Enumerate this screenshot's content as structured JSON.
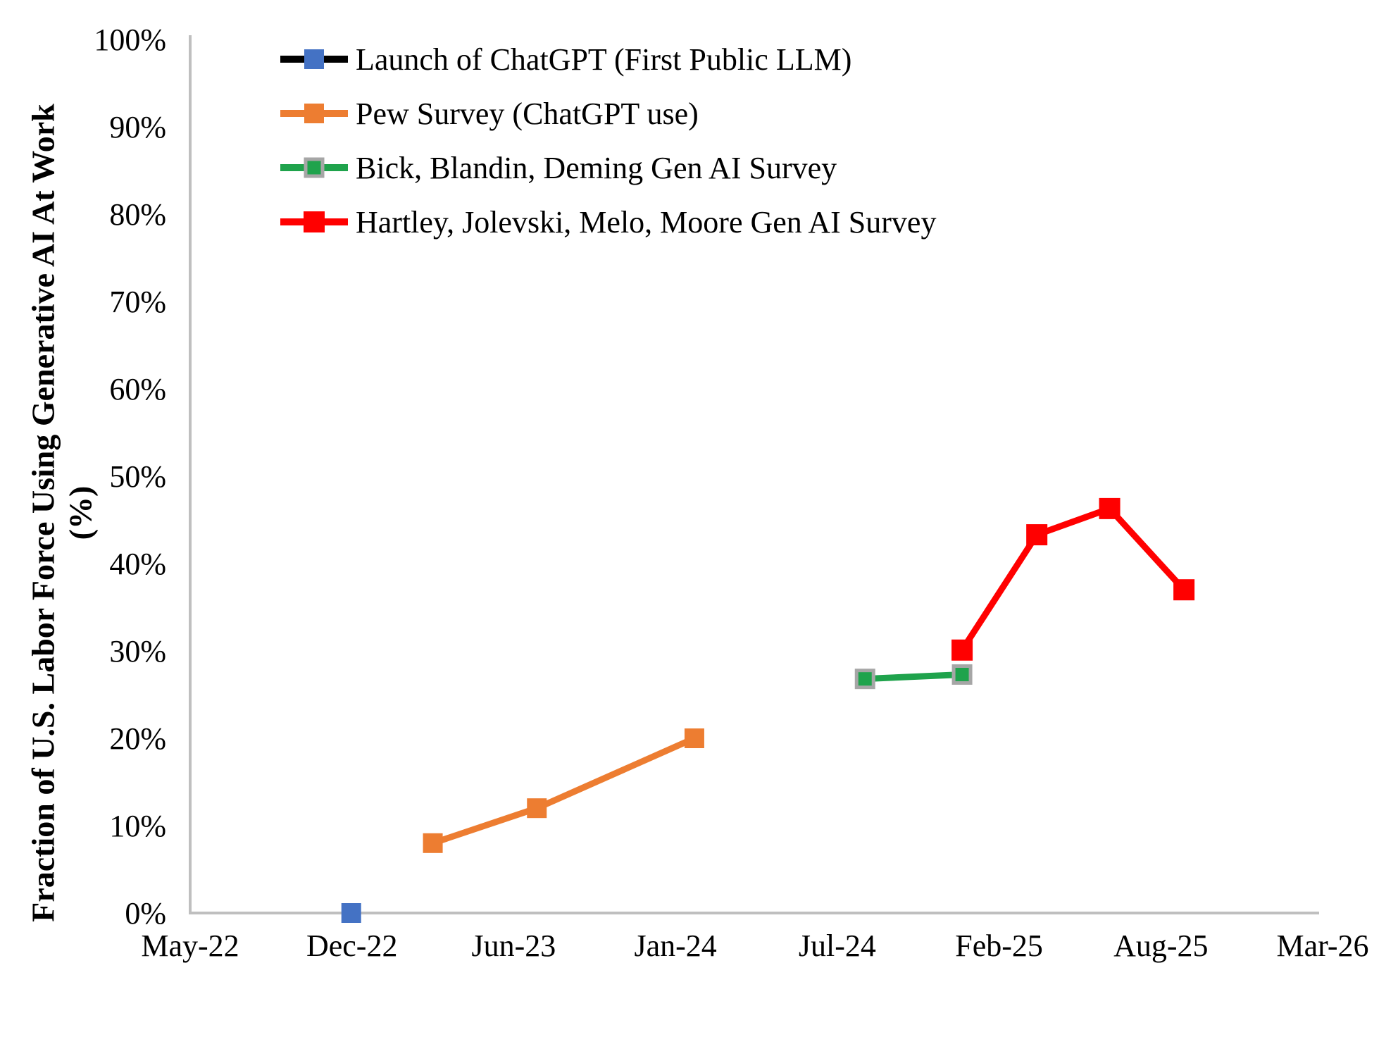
{
  "chart_data": {
    "type": "line",
    "title": "",
    "ylabel_line1": "Fraction of U.S. Labor Force Using Generative AI At Work",
    "ylabel_line2": "(%)",
    "background_color": "#FFFFFF",
    "axis_color": "#BFBFBF",
    "text_color": "#000000",
    "grid": "off",
    "legend_position": "top-left-inside",
    "y_axis": {
      "min": 0,
      "max": 100,
      "step": 10,
      "tick_labels": [
        "0%",
        "10%",
        "20%",
        "30%",
        "40%",
        "50%",
        "60%",
        "70%",
        "80%",
        "90%",
        "100%"
      ]
    },
    "x_axis": {
      "tick_labels": [
        "May-22",
        "Dec-22",
        "Jun-23",
        "Jan-24",
        "Jul-24",
        "Feb-25",
        "Aug-25",
        "Mar-26"
      ],
      "tick_months_since_may22": [
        0,
        7,
        13,
        20,
        26,
        33,
        39,
        46
      ]
    },
    "series": [
      {
        "name": "Launch of ChatGPT (First Public LLM)",
        "line_color": "#000000",
        "marker_color": "#4472C4",
        "points": [
          {
            "date": "Dec-22",
            "month": 6.97,
            "value_pct": 0
          }
        ]
      },
      {
        "name": "Pew Survey (ChatGPT use)",
        "line_color": "#ED7D31",
        "marker_color": "#ED7D31",
        "points": [
          {
            "date": "Mar-23",
            "month": 10.0,
            "value_pct": 8
          },
          {
            "date": "Jul-23",
            "month": 14.0,
            "value_pct": 12
          },
          {
            "date": "Feb-24",
            "month": 20.7,
            "value_pct": 20
          }
        ]
      },
      {
        "name": "Bick, Blandin, Deming Gen AI Survey",
        "line_color": "#1FA34C",
        "marker_color": "#1FA34C",
        "marker_border_color": "#A6A6A6",
        "points": [
          {
            "date": "Aug-24",
            "month": 27.2,
            "value_pct": 26.8
          },
          {
            "date": "Dec-24",
            "month": 31.4,
            "value_pct": 27.3
          }
        ]
      },
      {
        "name": "Hartley, Jolevski, Melo, Moore Gen AI Survey",
        "line_color": "#FF0000",
        "marker_color": "#FF0000",
        "points": [
          {
            "date": "Dec-24",
            "month": 31.4,
            "value_pct": 30.1
          },
          {
            "date": "Mar-25",
            "month": 34.4,
            "value_pct": 43.3
          },
          {
            "date": "Jun-25",
            "month": 37.1,
            "value_pct": 46.3
          },
          {
            "date": "Sep-25",
            "month": 40.0,
            "value_pct": 37.0
          }
        ]
      }
    ]
  }
}
